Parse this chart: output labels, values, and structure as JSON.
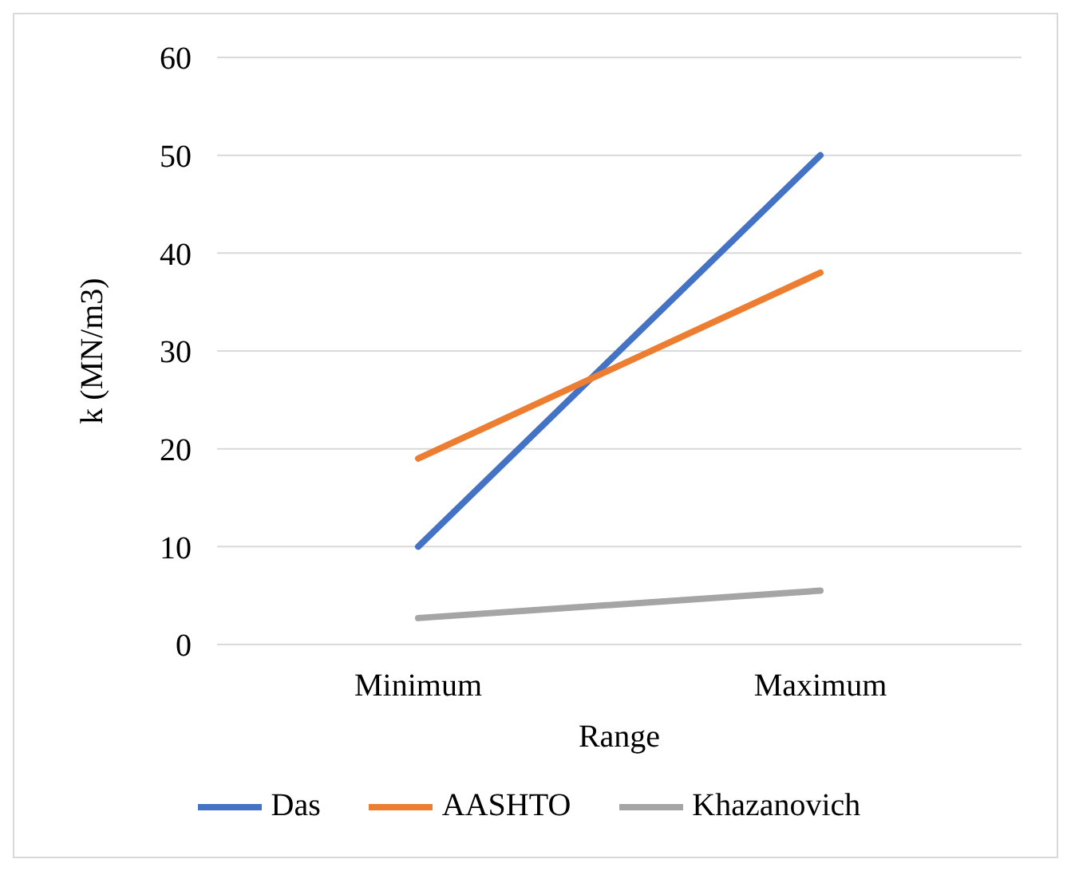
{
  "chart_data": {
    "type": "line",
    "xlabel": "Range",
    "ylabel": "k  (MN/m3)",
    "categories": [
      "Minimum",
      "Maximum"
    ],
    "series": [
      {
        "name": "Das",
        "color": "#4472c4",
        "values": [
          10,
          50
        ]
      },
      {
        "name": "AASHTO",
        "color": "#ed7d31",
        "values": [
          19,
          38
        ]
      },
      {
        "name": "Khazanovich",
        "color": "#a5a5a5",
        "values": [
          2.7,
          5.5
        ]
      }
    ],
    "ylim": [
      0,
      60
    ],
    "yticks": [
      0,
      10,
      20,
      30,
      40,
      50,
      60
    ],
    "grid": "y",
    "legend": "bottom",
    "marker": "none",
    "line_style": "solid"
  }
}
